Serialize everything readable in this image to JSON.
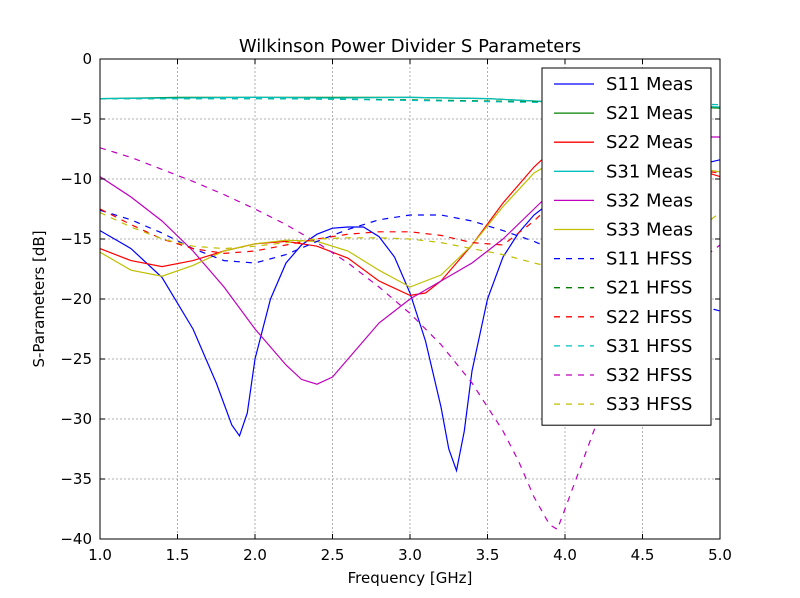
{
  "chart_data": {
    "type": "line",
    "title": "Wilkinson Power Divider S Parameters",
    "xlabel": "Frequency [GHz]",
    "ylabel": "S-Parameters [dB]",
    "xlim": [
      1.0,
      5.0
    ],
    "ylim": [
      -40,
      0
    ],
    "xticks": [
      "1.0",
      "1.5",
      "2.0",
      "2.5",
      "3.0",
      "3.5",
      "4.0",
      "4.5",
      "5.0"
    ],
    "yticks": [
      "0",
      "−5",
      "−10",
      "−15",
      "−20",
      "−25",
      "−30",
      "−35",
      "−40"
    ],
    "grid": true,
    "legend_position": "top-right",
    "series": [
      {
        "name": "S11 Meas",
        "color": "#0000ff",
        "dash": false,
        "x": [
          1.0,
          1.2,
          1.4,
          1.6,
          1.75,
          1.85,
          1.9,
          1.95,
          2.0,
          2.1,
          2.2,
          2.3,
          2.4,
          2.5,
          2.6,
          2.7,
          2.8,
          2.9,
          3.0,
          3.1,
          3.2,
          3.25,
          3.3,
          3.35,
          3.4,
          3.5,
          3.6,
          3.7,
          3.8,
          3.9,
          4.0,
          4.2,
          4.4,
          4.6,
          4.8,
          5.0
        ],
        "y": [
          -14.3,
          -15.8,
          -18.2,
          -22.5,
          -27.0,
          -30.5,
          -31.4,
          -29.5,
          -25.0,
          -20.0,
          -17.0,
          -15.5,
          -14.6,
          -14.1,
          -14.0,
          -14.0,
          -14.8,
          -16.5,
          -19.5,
          -23.5,
          -29.0,
          -32.5,
          -34.3,
          -31.0,
          -26.0,
          -20.0,
          -16.5,
          -14.5,
          -13.0,
          -12.0,
          -11.3,
          -10.3,
          -9.8,
          -9.4,
          -9.0,
          -8.4
        ]
      },
      {
        "name": "S21 Meas",
        "color": "#008000",
        "dash": false,
        "x": [
          1.0,
          1.5,
          2.0,
          2.5,
          3.0,
          3.5,
          3.8,
          4.0,
          4.2,
          4.4,
          4.6,
          4.8,
          5.0
        ],
        "y": [
          -3.3,
          -3.2,
          -3.2,
          -3.2,
          -3.2,
          -3.3,
          -3.5,
          -3.7,
          -3.8,
          -3.9,
          -3.9,
          -4.0,
          -4.1
        ]
      },
      {
        "name": "S22 Meas",
        "color": "#ff0000",
        "dash": false,
        "x": [
          1.0,
          1.2,
          1.4,
          1.6,
          1.8,
          2.0,
          2.2,
          2.4,
          2.6,
          2.8,
          3.0,
          3.1,
          3.2,
          3.4,
          3.6,
          3.8,
          3.9,
          4.0,
          4.2,
          4.4,
          4.6,
          4.8,
          5.0
        ],
        "y": [
          -15.8,
          -16.8,
          -17.3,
          -16.8,
          -16.0,
          -15.4,
          -15.2,
          -15.6,
          -16.6,
          -18.5,
          -19.7,
          -19.5,
          -18.5,
          -15.5,
          -12.0,
          -9.0,
          -7.8,
          -7.3,
          -7.3,
          -7.8,
          -8.4,
          -9.0,
          -9.8
        ]
      },
      {
        "name": "S31 Meas",
        "color": "#00bfbf",
        "dash": false,
        "x": [
          1.0,
          1.5,
          2.0,
          2.5,
          3.0,
          3.5,
          3.8,
          4.0,
          4.2,
          4.4,
          4.6,
          4.8,
          5.0
        ],
        "y": [
          -3.3,
          -3.25,
          -3.2,
          -3.25,
          -3.2,
          -3.3,
          -3.5,
          -3.6,
          -3.7,
          -3.8,
          -3.8,
          -3.9,
          -4.0
        ]
      },
      {
        "name": "S32 Meas",
        "color": "#bf00bf",
        "dash": false,
        "x": [
          1.0,
          1.2,
          1.4,
          1.6,
          1.8,
          2.0,
          2.2,
          2.3,
          2.4,
          2.5,
          2.6,
          2.8,
          3.0,
          3.2,
          3.4,
          3.6,
          3.8,
          4.0,
          4.2,
          4.4,
          4.6,
          4.8,
          5.0
        ],
        "y": [
          -9.8,
          -11.5,
          -13.5,
          -16.0,
          -19.0,
          -22.5,
          -25.5,
          -26.7,
          -27.1,
          -26.5,
          -25.0,
          -22.0,
          -20.0,
          -18.5,
          -17.0,
          -15.0,
          -12.5,
          -10.0,
          -8.3,
          -7.3,
          -6.8,
          -6.5,
          -6.5
        ]
      },
      {
        "name": "S33 Meas",
        "color": "#bfbf00",
        "dash": false,
        "x": [
          1.0,
          1.2,
          1.4,
          1.6,
          1.8,
          2.0,
          2.2,
          2.4,
          2.6,
          2.8,
          3.0,
          3.2,
          3.4,
          3.6,
          3.8,
          4.0,
          4.2,
          4.4,
          4.6,
          4.8,
          5.0
        ],
        "y": [
          -16.1,
          -17.6,
          -18.1,
          -17.2,
          -16.0,
          -15.4,
          -15.1,
          -15.2,
          -16.0,
          -17.6,
          -19.0,
          -18.0,
          -15.5,
          -12.3,
          -9.5,
          -8.0,
          -7.4,
          -7.7,
          -8.4,
          -9.0,
          -9.4
        ]
      },
      {
        "name": "S11 HFSS",
        "color": "#0000ff",
        "dash": true,
        "x": [
          1.0,
          1.2,
          1.4,
          1.6,
          1.8,
          2.0,
          2.2,
          2.4,
          2.6,
          2.8,
          3.0,
          3.2,
          3.4,
          3.6,
          3.8,
          4.0,
          4.2,
          4.4,
          4.6,
          4.8,
          5.0
        ],
        "y": [
          -12.6,
          -13.4,
          -14.5,
          -15.8,
          -16.8,
          -17.0,
          -16.3,
          -15.2,
          -14.2,
          -13.4,
          -13.0,
          -13.0,
          -13.5,
          -14.3,
          -15.2,
          -16.3,
          -17.3,
          -18.3,
          -19.3,
          -20.3,
          -21.0
        ]
      },
      {
        "name": "S21 HFSS",
        "color": "#008000",
        "dash": true,
        "x": [
          1.0,
          1.5,
          2.0,
          2.5,
          3.0,
          3.5,
          4.0,
          4.5,
          5.0
        ],
        "y": [
          -3.3,
          -3.3,
          -3.3,
          -3.35,
          -3.4,
          -3.5,
          -3.6,
          -3.7,
          -3.8
        ]
      },
      {
        "name": "S22 HFSS",
        "color": "#ff0000",
        "dash": true,
        "x": [
          1.0,
          1.2,
          1.4,
          1.6,
          1.8,
          2.0,
          2.2,
          2.4,
          2.6,
          2.8,
          3.0,
          3.2,
          3.4,
          3.6,
          3.8,
          4.0,
          4.2,
          4.4,
          4.6,
          4.8,
          5.0
        ],
        "y": [
          -12.5,
          -13.8,
          -15.0,
          -15.8,
          -16.2,
          -16.0,
          -15.5,
          -15.0,
          -14.6,
          -14.4,
          -14.4,
          -14.7,
          -15.3,
          -15.5,
          -13.5,
          -11.0,
          -9.5,
          -9.0,
          -9.0,
          -9.2,
          -9.5
        ]
      },
      {
        "name": "S31 HFSS",
        "color": "#00bfbf",
        "dash": true,
        "x": [
          1.0,
          1.5,
          2.0,
          2.5,
          3.0,
          3.5,
          4.0,
          4.5,
          5.0
        ],
        "y": [
          -3.3,
          -3.3,
          -3.3,
          -3.35,
          -3.45,
          -3.55,
          -3.65,
          -3.75,
          -3.8
        ]
      },
      {
        "name": "S32 HFSS",
        "color": "#bf00bf",
        "dash": true,
        "x": [
          1.0,
          1.2,
          1.4,
          1.6,
          1.8,
          2.0,
          2.2,
          2.4,
          2.6,
          2.8,
          3.0,
          3.2,
          3.4,
          3.6,
          3.7,
          3.8,
          3.9,
          3.95,
          4.0,
          4.1,
          4.2,
          4.4,
          4.6,
          4.8,
          5.0
        ],
        "y": [
          -7.4,
          -8.2,
          -9.2,
          -10.2,
          -11.3,
          -12.5,
          -13.8,
          -15.3,
          -17.0,
          -19.0,
          -21.2,
          -23.8,
          -27.0,
          -31.0,
          -33.5,
          -36.5,
          -38.8,
          -39.2,
          -37.5,
          -34.0,
          -30.5,
          -25.0,
          -20.5,
          -17.5,
          -15.5
        ]
      },
      {
        "name": "S33 HFSS",
        "color": "#bfbf00",
        "dash": true,
        "x": [
          1.0,
          1.2,
          1.4,
          1.6,
          1.8,
          2.0,
          2.2,
          2.4,
          2.6,
          2.8,
          3.0,
          3.2,
          3.4,
          3.6,
          3.8,
          4.0,
          4.2,
          4.4,
          4.6,
          4.8,
          5.0
        ],
        "y": [
          -12.8,
          -14.0,
          -15.0,
          -15.6,
          -15.8,
          -15.6,
          -15.3,
          -15.0,
          -14.9,
          -14.9,
          -15.0,
          -15.3,
          -15.8,
          -16.3,
          -17.0,
          -17.6,
          -17.8,
          -17.5,
          -16.5,
          -14.8,
          -12.8
        ]
      }
    ]
  }
}
